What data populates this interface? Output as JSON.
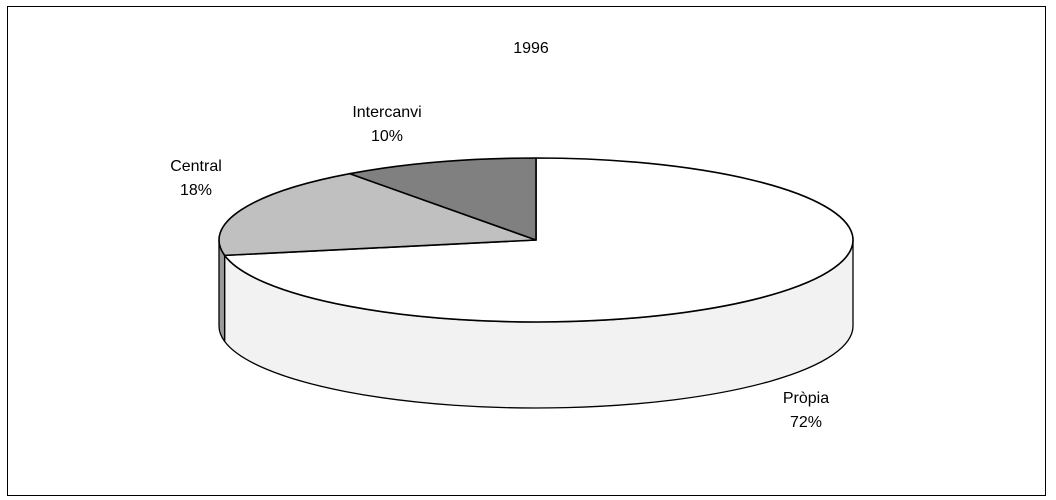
{
  "chart_data": {
    "type": "pie",
    "title": "1996",
    "three_d": true,
    "slices": [
      {
        "label": "Pròpia",
        "value": 72,
        "value_label": "72%",
        "color": "#ffffff",
        "side_color": "#f2f2f2"
      },
      {
        "label": "Central",
        "value": 18,
        "value_label": "18%",
        "color": "#c0c0c0",
        "side_color": "#9a9a9a"
      },
      {
        "label": "Intercanvi",
        "value": 10,
        "value_label": "10%",
        "color": "#808080",
        "side_color": "#606060"
      }
    ]
  }
}
